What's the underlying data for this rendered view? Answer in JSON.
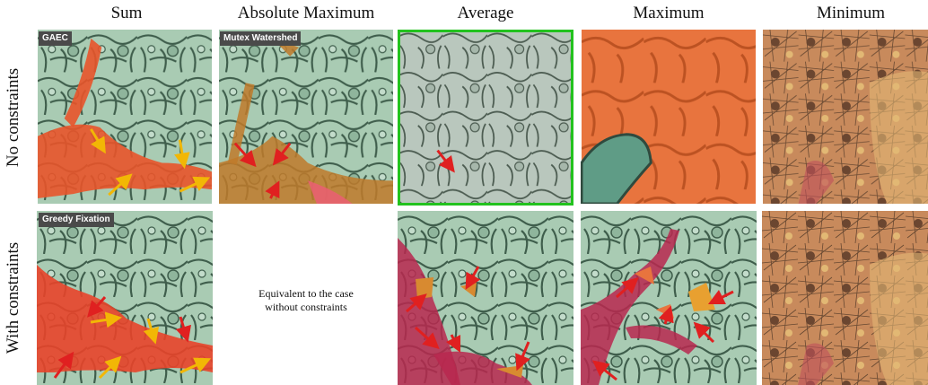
{
  "columns": [
    "Sum",
    "Absolute Maximum",
    "Average",
    "Maximum",
    "Minimum"
  ],
  "rows": [
    "No constraints",
    "With constraints"
  ],
  "badges": {
    "gaec": "GAEC",
    "mutex": "Mutex Watershed",
    "greedy": "Greedy Fixation"
  },
  "equivalent_note": {
    "line1": "Equivalent to the case",
    "line2": "without constraints"
  },
  "colors": {
    "segment_green": "#a9cbb3",
    "membrane_green": "#3f5e4c",
    "sum_orange_red": "#e8542a",
    "maximum_orange": "#e8743e",
    "average_magenta": "#b8284f",
    "minimum_brown": "#8a5a3c",
    "minimum_tan": "#e2b874",
    "selected_frame_green": "#22c21e",
    "yellow_arrow": "#f2b705",
    "red_arrow": "#e02020"
  }
}
